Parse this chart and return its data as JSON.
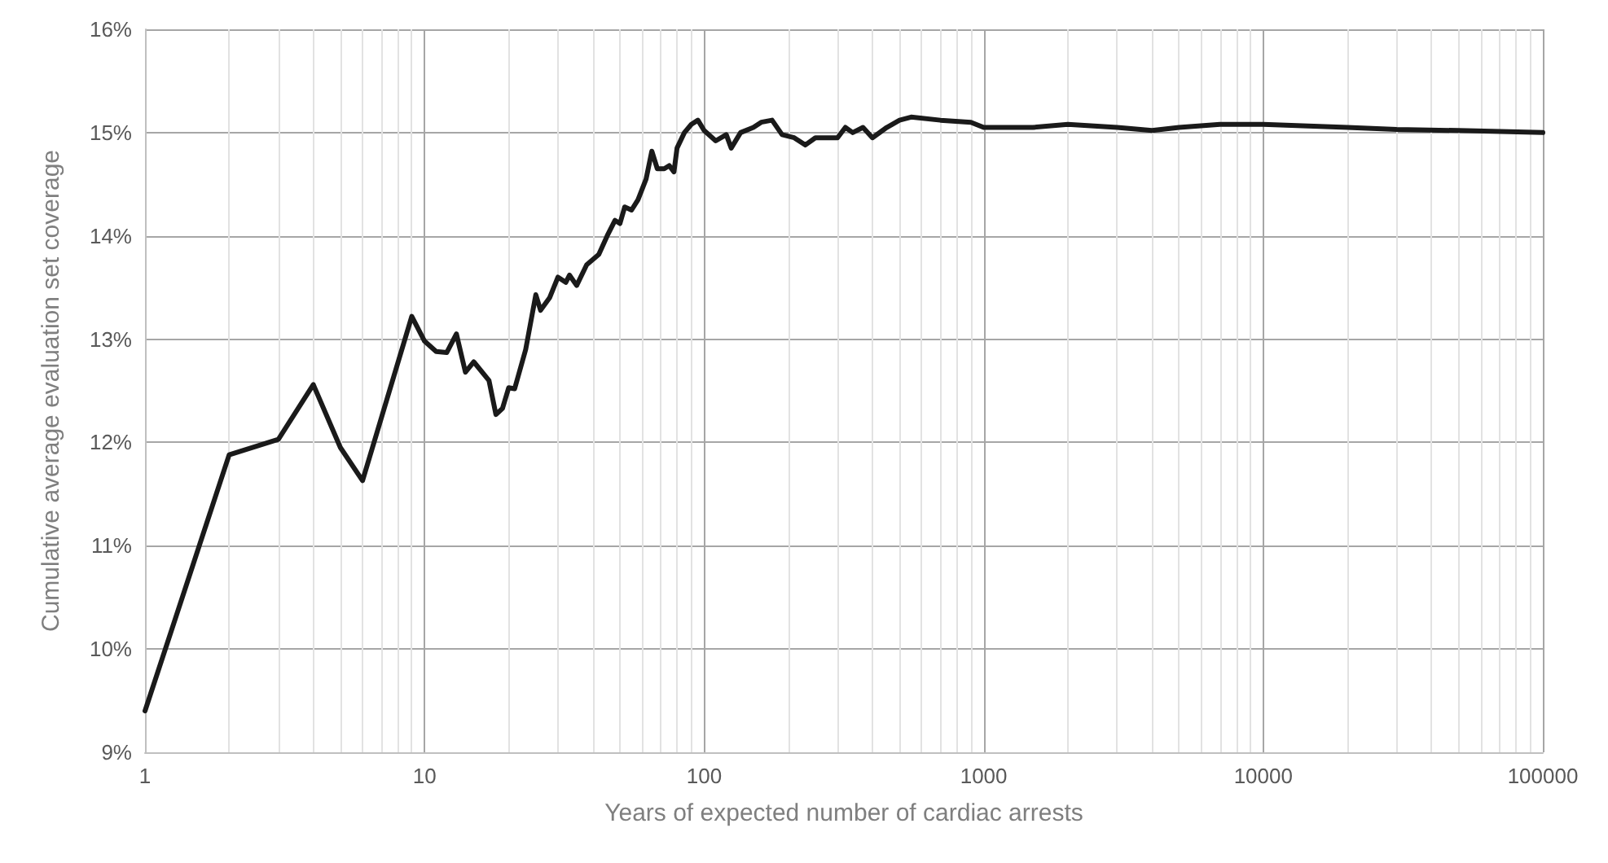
{
  "chart_data": {
    "type": "line",
    "xlabel": "Years of expected number of cardiac arrests",
    "ylabel": "Cumulative average evaluation set coverage",
    "log": "x",
    "grid": true,
    "marker": "none",
    "line_style": "solid",
    "xlim": [
      1,
      100000
    ],
    "ylim": [
      9,
      16
    ],
    "xticks": [
      1,
      {
        "value": 2,
        "label": null
      },
      {
        "value": 3,
        "label": null
      },
      {
        "value": 4,
        "label": null
      },
      {
        "value": 5,
        "label": null
      },
      {
        "value": 6,
        "label": null
      },
      {
        "value": 7,
        "label": null
      },
      {
        "value": 8,
        "label": null
      },
      {
        "value": 9,
        "label": null
      },
      10,
      {
        "value": 20,
        "label": null
      },
      {
        "value": 30,
        "label": null
      },
      {
        "value": 40,
        "label": null
      },
      {
        "value": 50,
        "label": null
      },
      {
        "value": 60,
        "label": null
      },
      {
        "value": 70,
        "label": null
      },
      {
        "value": 80,
        "label": null
      },
      {
        "value": 90,
        "label": null
      },
      100,
      {
        "value": 200,
        "label": null
      },
      {
        "value": 300,
        "label": null
      },
      {
        "value": 400,
        "label": null
      },
      {
        "value": 500,
        "label": null
      },
      {
        "value": 600,
        "label": null
      },
      {
        "value": 700,
        "label": null
      },
      {
        "value": 800,
        "label": null
      },
      {
        "value": 900,
        "label": null
      },
      1000,
      {
        "value": 2000,
        "label": null
      },
      {
        "value": 3000,
        "label": null
      },
      {
        "value": 4000,
        "label": null
      },
      {
        "value": 5000,
        "label": null
      },
      {
        "value": 6000,
        "label": null
      },
      {
        "value": 7000,
        "label": null
      },
      {
        "value": 8000,
        "label": null
      },
      {
        "value": 9000,
        "label": null
      },
      10000,
      {
        "value": 20000,
        "label": null
      },
      {
        "value": 30000,
        "label": null
      },
      {
        "value": 40000,
        "label": null
      },
      {
        "value": 50000,
        "label": null
      },
      {
        "value": 60000,
        "label": null
      },
      {
        "value": 70000,
        "label": null
      },
      {
        "value": 80000,
        "label": null
      },
      {
        "value": 90000,
        "label": null
      },
      100000
    ],
    "yticks": [
      {
        "value": 9,
        "label": "9%"
      },
      {
        "value": 10,
        "label": "10%"
      },
      {
        "value": 11,
        "label": "11%"
      },
      {
        "value": 12,
        "label": "12%"
      },
      {
        "value": 13,
        "label": "13%"
      },
      {
        "value": 14,
        "label": "14%"
      },
      {
        "value": 15,
        "label": "15%"
      },
      {
        "value": 16,
        "label": "16%"
      }
    ],
    "series": [
      {
        "color": "#1a1a1a",
        "x": [
          1,
          2,
          3,
          4,
          5,
          6,
          9,
          10,
          11,
          12,
          13,
          14,
          15,
          17,
          18,
          19,
          20,
          21,
          23,
          25,
          26,
          28,
          30,
          32,
          33,
          35,
          38,
          42,
          45,
          48,
          50,
          52,
          55,
          58,
          62,
          65,
          68,
          72,
          75,
          78,
          80,
          85,
          90,
          95,
          100,
          110,
          120,
          125,
          135,
          150,
          160,
          175,
          190,
          210,
          230,
          250,
          300,
          320,
          340,
          370,
          400,
          450,
          500,
          550,
          700,
          900,
          1000,
          1500,
          2000,
          3000,
          4000,
          5000,
          7000,
          10000,
          20000,
          30000,
          50000,
          100000
        ],
        "values": [
          9.4,
          11.88,
          12.03,
          12.56,
          11.95,
          11.63,
          13.22,
          12.98,
          12.88,
          12.87,
          13.05,
          12.68,
          12.78,
          12.6,
          12.27,
          12.33,
          12.53,
          12.52,
          12.9,
          13.43,
          13.28,
          13.4,
          13.6,
          13.55,
          13.62,
          13.52,
          13.72,
          13.82,
          14.0,
          14.15,
          14.12,
          14.28,
          14.25,
          14.35,
          14.55,
          14.82,
          14.65,
          14.65,
          14.68,
          14.62,
          14.85,
          15.0,
          15.08,
          15.12,
          15.02,
          14.92,
          14.98,
          14.85,
          15.0,
          15.05,
          15.1,
          15.12,
          14.98,
          14.95,
          14.88,
          14.95,
          14.95,
          15.05,
          15.0,
          15.05,
          14.95,
          15.05,
          15.12,
          15.15,
          15.12,
          15.1,
          15.05,
          15.05,
          15.08,
          15.05,
          15.02,
          15.05,
          15.08,
          15.08,
          15.05,
          15.03,
          15.02,
          15.0
        ]
      }
    ]
  }
}
